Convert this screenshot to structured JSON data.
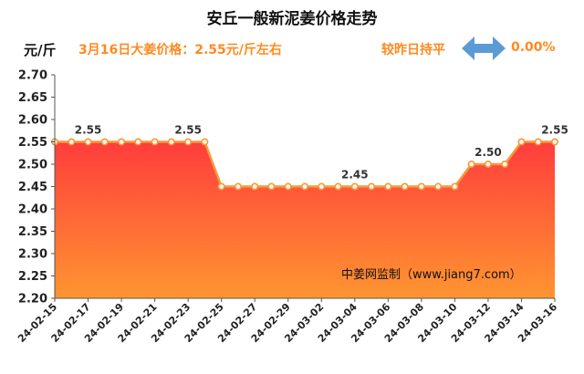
{
  "header": {
    "title": "安丘一般新泥姜价格走势",
    "unit": "元/斤",
    "price_note": "3月16日大姜价格：2.55元/斤左右",
    "compare_label": "较昨日持平",
    "change": "0.00%",
    "arrow_icon": "left-right-arrow-icon",
    "arrow_color": "#5b9bd5",
    "accent_color": "#ff8a1f"
  },
  "chart_data": {
    "type": "area",
    "title": "安丘一般新泥姜价格走势",
    "ylabel": "元/斤",
    "ylim": [
      2.2,
      2.7
    ],
    "yticks": [
      "2.70",
      "2.65",
      "2.60",
      "2.55",
      "2.50",
      "2.45",
      "2.40",
      "2.35",
      "2.30",
      "2.25",
      "2.20"
    ],
    "x_tick_labels": [
      "24-02-15",
      "24-02-17",
      "24-02-19",
      "24-02-21",
      "24-02-23",
      "24-02-25",
      "24-02-27",
      "24-02-29",
      "24-03-02",
      "24-03-04",
      "24-03-06",
      "24-03-08",
      "24-03-10",
      "24-03-12",
      "24-03-14",
      "24-03-16"
    ],
    "x": [
      "24-02-15",
      "24-02-16",
      "24-02-17",
      "24-02-18",
      "24-02-19",
      "24-02-20",
      "24-02-21",
      "24-02-22",
      "24-02-23",
      "24-02-24",
      "24-02-25",
      "24-02-26",
      "24-02-27",
      "24-02-28",
      "24-02-29",
      "24-03-01",
      "24-03-02",
      "24-03-03",
      "24-03-04",
      "24-03-05",
      "24-03-06",
      "24-03-07",
      "24-03-08",
      "24-03-09",
      "24-03-10",
      "24-03-11",
      "24-03-12",
      "24-03-13",
      "24-03-14",
      "24-03-15",
      "24-03-16"
    ],
    "values": [
      2.55,
      2.55,
      2.55,
      2.55,
      2.55,
      2.55,
      2.55,
      2.55,
      2.55,
      2.55,
      2.45,
      2.45,
      2.45,
      2.45,
      2.45,
      2.45,
      2.45,
      2.45,
      2.45,
      2.45,
      2.45,
      2.45,
      2.45,
      2.45,
      2.45,
      2.5,
      2.5,
      2.5,
      2.55,
      2.55,
      2.55
    ],
    "data_labels": [
      {
        "x": "24-02-17",
        "text": "2.55"
      },
      {
        "x": "24-02-23",
        "text": "2.55"
      },
      {
        "x": "24-03-04",
        "text": "2.45"
      },
      {
        "x": "24-03-12",
        "text": "2.50"
      },
      {
        "x": "24-03-16",
        "text": "2.55"
      }
    ],
    "watermark": "中姜网监制（www.jiang7.com）",
    "grid": false,
    "colors": {
      "line": "#f39a3c",
      "marker": "#f39a3c",
      "fill_top": "#ff4040",
      "fill_bottom": "#ff9a30"
    }
  }
}
